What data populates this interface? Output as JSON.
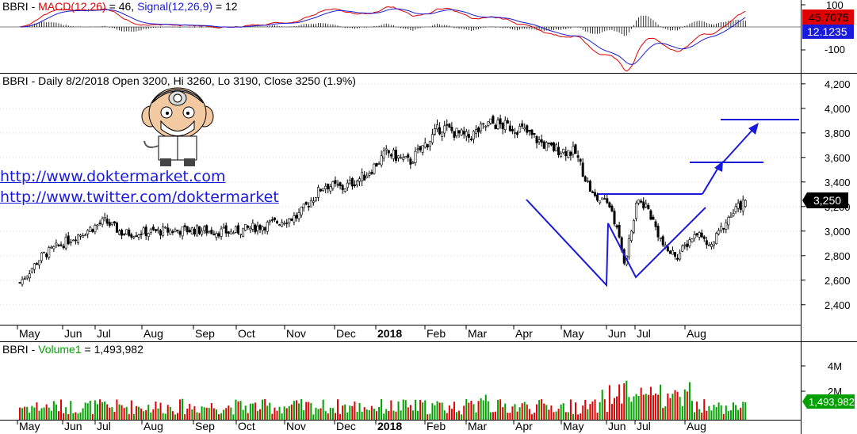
{
  "colors": {
    "up": "#00a000",
    "down": "#e00000",
    "macd": "#e00000",
    "signal": "#1a1adb",
    "pattern": "#1a1adb",
    "bg": "#ffffff",
    "grid": "#d8d8d8"
  },
  "macd_panel": {
    "symbol": "BBRI",
    "macd_label": "MACD(12,26)",
    "macd_value": "46",
    "signal_label": "Signal(12,26,9)",
    "signal_value": "12",
    "macd_badge": "45.7075",
    "signal_badge": "12.1235",
    "ticks": [
      "100",
      "-100"
    ]
  },
  "price_panel": {
    "header": "BBRI - Daily 8/2/2018 Open 3200, Hi 3260, Lo 3190, Close 3250 (1.9%)",
    "last_badge": "3,250",
    "links": [
      "http://www.doktermarket.com",
      "http://www.twitter.com/doktermarket"
    ]
  },
  "volume_panel": {
    "symbol": "BBRI",
    "label": "Volume1",
    "value": "1,493,982",
    "badge": "1,493,982",
    "ticks": [
      "4M",
      "2M"
    ]
  },
  "months": [
    "May",
    "Jun",
    "Jul",
    "Aug",
    "Sep",
    "Oct",
    "Nov",
    "Dec",
    "2018",
    "Feb",
    "Mar",
    "Apr",
    "May",
    "Jun",
    "Jul",
    "Aug"
  ],
  "chart_data": {
    "type": "candlestick",
    "title": "BBRI - Daily 8/2/2018 Open 3200, Hi 3260, Lo 3190, Close 3250 (1.9%)",
    "x_axis": {
      "labels": [
        "May",
        "Jun",
        "Jul",
        "Aug",
        "Sep",
        "Oct",
        "Nov",
        "Dec",
        "2018",
        "Feb",
        "Mar",
        "Apr",
        "May",
        "Jun",
        "Jul",
        "Aug"
      ]
    },
    "y_axis": {
      "ticks": [
        2400,
        2600,
        2800,
        3000,
        3200,
        3400,
        3600,
        3800,
        4000,
        4200
      ],
      "ylim": [
        2250,
        4270
      ]
    },
    "last": {
      "open": 3200,
      "high": 3260,
      "low": 3190,
      "close": 3250,
      "change_pct": 1.9
    },
    "price_anchors": [
      {
        "m": 4.8,
        "v": 2580
      },
      {
        "m": 5.3,
        "v": 2800
      },
      {
        "m": 6.0,
        "v": 2950
      },
      {
        "m": 6.7,
        "v": 3080
      },
      {
        "m": 7.1,
        "v": 2980
      },
      {
        "m": 8.0,
        "v": 3000
      },
      {
        "m": 8.7,
        "v": 3010
      },
      {
        "m": 9.5,
        "v": 2990
      },
      {
        "m": 10.3,
        "v": 3050
      },
      {
        "m": 11.0,
        "v": 3120
      },
      {
        "m": 11.6,
        "v": 3380
      },
      {
        "m": 12.0,
        "v": 3350
      },
      {
        "m": 12.5,
        "v": 3450
      },
      {
        "m": 13.0,
        "v": 3640
      },
      {
        "m": 13.5,
        "v": 3560
      },
      {
        "m": 14.2,
        "v": 3850
      },
      {
        "m": 14.8,
        "v": 3760
      },
      {
        "m": 15.3,
        "v": 3880
      },
      {
        "m": 16.0,
        "v": 3830
      },
      {
        "m": 16.6,
        "v": 3680
      },
      {
        "m": 17.2,
        "v": 3640
      },
      {
        "m": 17.6,
        "v": 3280
      },
      {
        "m": 18.0,
        "v": 3200
      },
      {
        "m": 18.3,
        "v": 2750
      },
      {
        "m": 18.6,
        "v": 3250
      },
      {
        "m": 18.8,
        "v": 3200
      },
      {
        "m": 19.2,
        "v": 2850
      },
      {
        "m": 19.5,
        "v": 2800
      },
      {
        "m": 19.9,
        "v": 3000
      },
      {
        "m": 20.2,
        "v": 2860
      },
      {
        "m": 20.6,
        "v": 3100
      },
      {
        "m": 21.0,
        "v": 3250
      }
    ],
    "macd": {
      "macd": 46,
      "signal": 12,
      "macd_last": 45.7075,
      "signal_last": 12.1235,
      "ticks": [
        100,
        -100
      ]
    },
    "volume": {
      "last": 1493982,
      "ticks": [
        "4M",
        "2M"
      ]
    }
  }
}
